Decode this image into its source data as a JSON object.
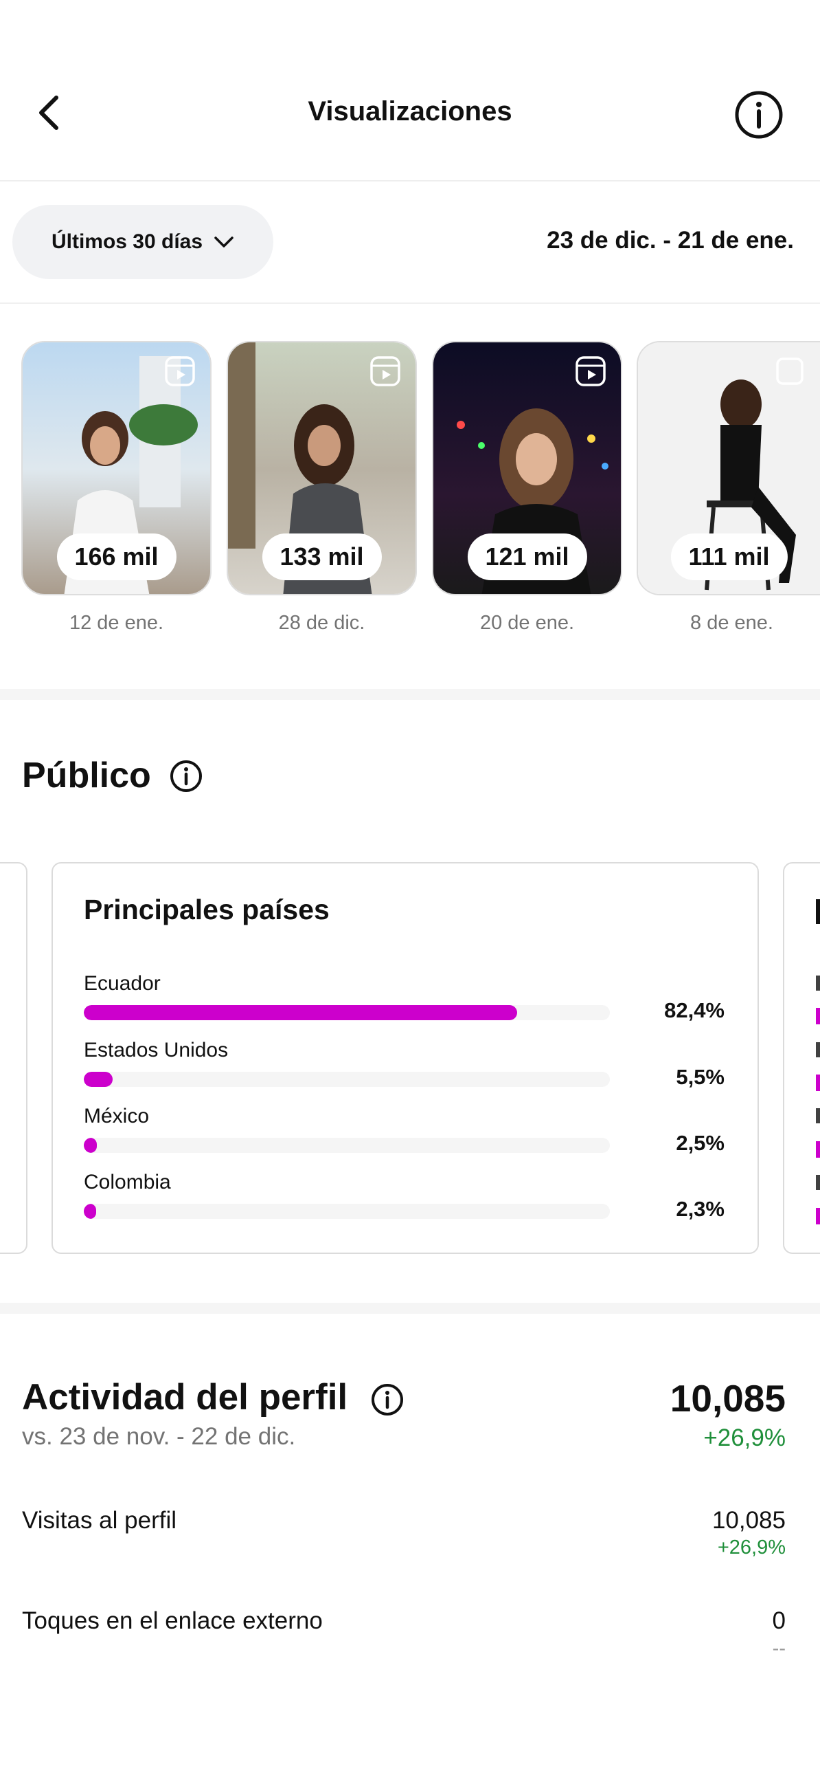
{
  "header": {
    "title": "Visualizaciones"
  },
  "filter": {
    "period_label": "Últimos 30 días",
    "date_range": "23 de dic. - 21 de ene."
  },
  "thumbnails": [
    {
      "views": "166 mil",
      "date": "12 de ene."
    },
    {
      "views": "133 mil",
      "date": "28 de dic."
    },
    {
      "views": "121 mil",
      "date": "20 de ene."
    },
    {
      "views": "111 mil",
      "date": "8 de ene."
    }
  ],
  "audience": {
    "title": "Público",
    "card_title": "Principales países",
    "countries": [
      {
        "name": "Ecuador",
        "pct_label": "82,4%",
        "value": 82.4
      },
      {
        "name": "Estados Unidos",
        "pct_label": "5,5%",
        "value": 5.5
      },
      {
        "name": "México",
        "pct_label": "2,5%",
        "value": 2.5
      },
      {
        "name": "Colombia",
        "pct_label": "2,3%",
        "value": 2.3
      }
    ],
    "bar_color": "#cc00cc"
  },
  "activity": {
    "title": "Actividad del perfil",
    "comparison": "vs. 23 de nov. - 22 de dic.",
    "total": "10,085",
    "total_delta": "+26,9%",
    "rows": [
      {
        "label": "Visitas al perfil",
        "value": "10,085",
        "delta": "+26,9%"
      },
      {
        "label": "Toques en el enlace externo",
        "value": "0",
        "delta": "--"
      }
    ]
  },
  "colors": {
    "accent": "#cc00cc",
    "positive": "#1f8f3a",
    "muted": "#737373"
  }
}
